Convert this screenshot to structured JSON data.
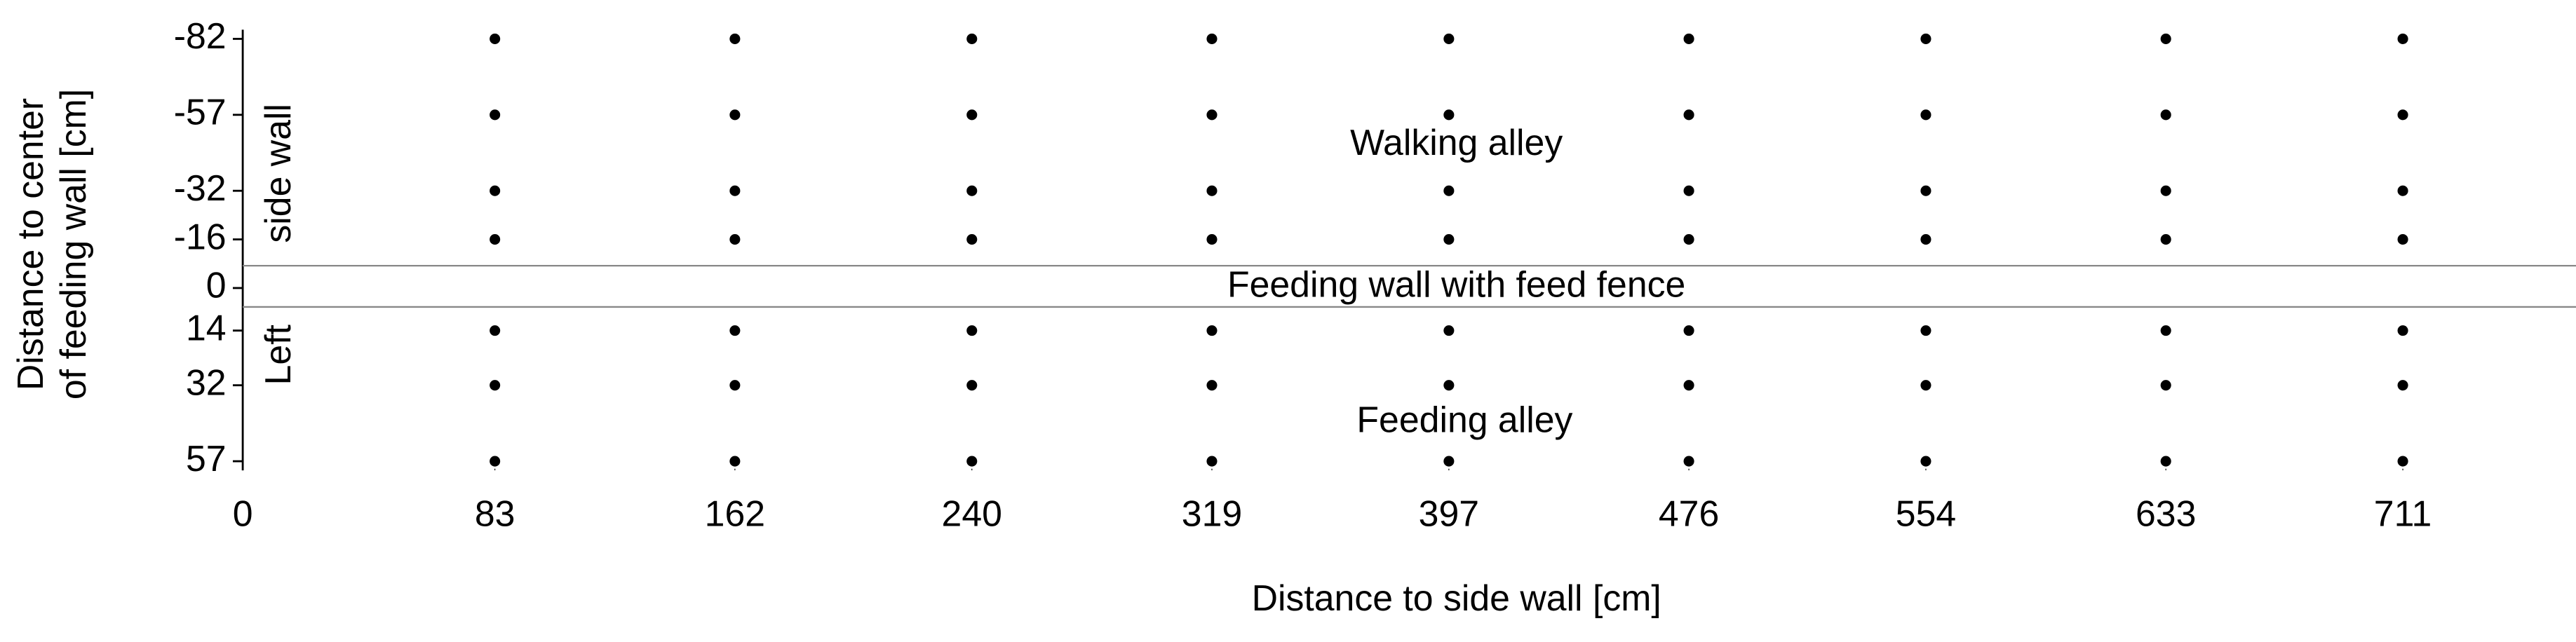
{
  "chart_data": {
    "type": "scatter",
    "xlabel": "Distance to side wall [cm]",
    "ylabel": [
      "Distance to center",
      "of feeding wall [cm]"
    ],
    "annotations": [
      "Walking alley",
      "Feeding wall with feed fence",
      "Feeding alley",
      "side wall",
      "Left"
    ],
    "xlim": [
      0,
      768
    ],
    "ylim": [
      -85,
      60
    ],
    "y_inverted": true,
    "xticks": [
      0,
      83,
      162,
      240,
      319,
      397,
      476,
      554,
      633,
      711
    ],
    "yticks": [
      -82,
      -57,
      -32,
      -16,
      0,
      14,
      32,
      57
    ],
    "series": [
      {
        "color": "#000000",
        "x": [
          83,
          162,
          240,
          319,
          397,
          476,
          554,
          633,
          711,
          83,
          162,
          240,
          319,
          397,
          476,
          554,
          633,
          711,
          83,
          162,
          240,
          319,
          397,
          476,
          554,
          633,
          711,
          83,
          162,
          240,
          319,
          397,
          476,
          554,
          633,
          711,
          83,
          162,
          240,
          319,
          397,
          476,
          554,
          633,
          711,
          83,
          162,
          240,
          319,
          397,
          476,
          554,
          633,
          711,
          83,
          162,
          240,
          319,
          397,
          476,
          554,
          633,
          711
        ],
        "values": [
          -82,
          -82,
          -82,
          -82,
          -82,
          -82,
          -82,
          -82,
          -82,
          -57,
          -57,
          -57,
          -57,
          -57,
          -57,
          -57,
          -57,
          -57,
          -32,
          -32,
          -32,
          -32,
          -32,
          -32,
          -32,
          -32,
          -32,
          -16,
          -16,
          -16,
          -16,
          -16,
          -16,
          -16,
          -16,
          -16,
          14,
          14,
          14,
          14,
          14,
          14,
          14,
          14,
          14,
          32,
          32,
          32,
          32,
          32,
          32,
          32,
          32,
          32,
          57,
          57,
          57,
          57,
          57,
          57,
          57,
          57,
          57
        ]
      }
    ]
  }
}
